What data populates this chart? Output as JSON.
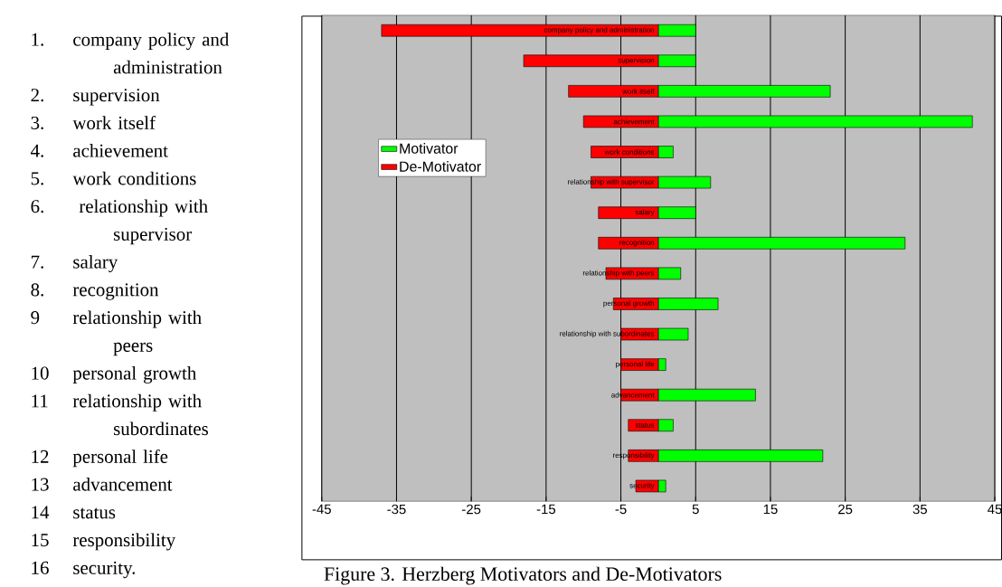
{
  "chart_data": {
    "type": "bar",
    "orientation": "horizontal",
    "categories": [
      "company policy and administration",
      "supervision",
      "work itself",
      "achievement",
      "work conditions",
      "relationship with supervisor",
      "salary",
      "recognition",
      "relationship with peers",
      "personal growth",
      "relationship with subordinates",
      "personal life",
      "advancement",
      "status",
      "responsibility",
      "security"
    ],
    "series": [
      {
        "name": "Motivator",
        "color": "#00ff00",
        "values": [
          5,
          5,
          23,
          42,
          2,
          7,
          5,
          33,
          3,
          8,
          4,
          1,
          13,
          2,
          22,
          1
        ]
      },
      {
        "name": "De-Motivator",
        "color": "#ff0000",
        "values": [
          -37,
          -18,
          -12,
          -10,
          -9,
          -9,
          -8,
          -8,
          -7,
          -6,
          -5,
          -5,
          -5,
          -4,
          -4,
          -3
        ]
      }
    ],
    "xlim": [
      -45,
      45
    ],
    "xticks": [
      -45,
      -35,
      -25,
      -15,
      -5,
      5,
      15,
      25,
      35,
      45
    ],
    "stacked": true,
    "grid": "x",
    "legend": "top left",
    "annotations": [
      "1.",
      "company policy and administration",
      "2.",
      "supervision",
      "3.",
      "work itself",
      "4.",
      "achievement",
      "5.",
      "work conditions",
      "6.",
      " relationship with supervisor",
      "7.",
      "salary",
      "8.",
      "recognition",
      "9",
      "relationship with peers",
      "10",
      "personal growth",
      "11",
      "relationship with subordinates",
      "12",
      "personal life",
      "13",
      "advancement",
      "14",
      "status",
      "15",
      "responsibility",
      "16",
      "security.",
      "Figure 3.  Herzberg Motivators and De-Motivators"
    ]
  }
}
